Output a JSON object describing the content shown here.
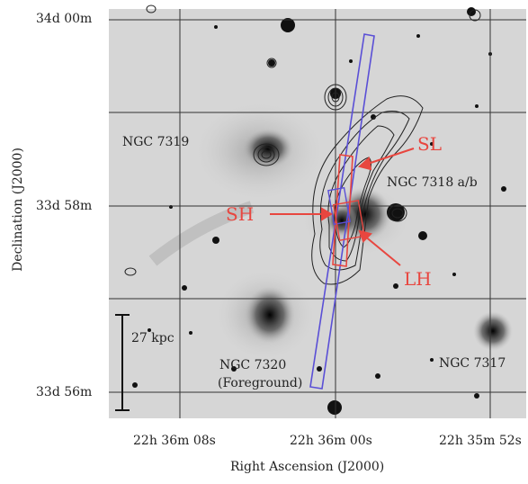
{
  "figure": {
    "y_ticks": [
      "34d 00m",
      "33d 58m",
      "33d 56m"
    ],
    "x_ticks": [
      "22h 36m 08s",
      "22h 36m 00s",
      "22h 35m 52s"
    ],
    "xlabel": "Right Ascension (J2000)",
    "ylabel": "Declination (J2000)",
    "galaxy_labels": {
      "ngc7319": "NGC 7319",
      "ngc7318": "NGC 7318 a/b",
      "ngc7320": "NGC 7320",
      "ngc7320_note": "(Foreground)",
      "ngc7317": "NGC 7317"
    },
    "slit_labels": {
      "sl": "SL",
      "sh": "SH",
      "lh": "LH"
    },
    "scale_bar_label": "27 kpc",
    "colors": {
      "slit_blue": "#5a4fd6",
      "slit_red": "#e8463f",
      "contours": "#222222",
      "grid": "#333333"
    }
  }
}
